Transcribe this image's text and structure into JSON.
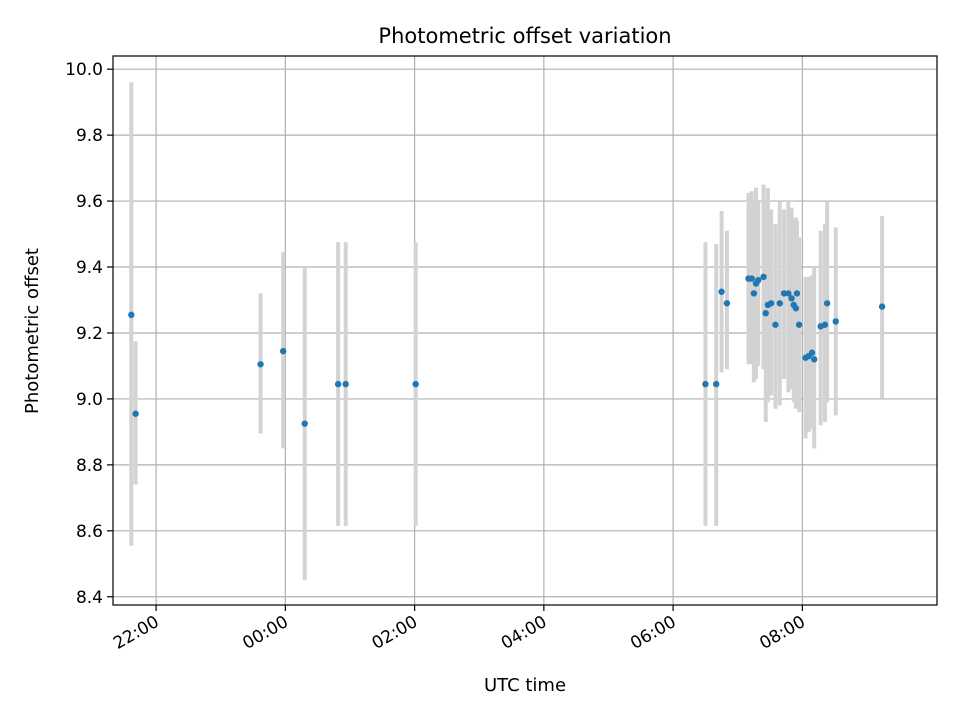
{
  "chart_data": {
    "type": "scatter",
    "title": "Photometric offset variation",
    "xlabel": "UTC time",
    "ylabel": "Photometric offset",
    "x_unit": "UTC time (day 1 evening → day 2 morning)",
    "xlim": [
      "21:20",
      "10:05"
    ],
    "ylim": [
      8.375,
      10.04
    ],
    "x_ticks": [
      "22:00",
      "00:00",
      "02:00",
      "04:00",
      "06:00",
      "08:00"
    ],
    "y_ticks": [
      "8.4",
      "8.6",
      "8.8",
      "9.0",
      "9.2",
      "9.4",
      "9.6",
      "9.8",
      "10.0"
    ],
    "grid": true,
    "colors": {
      "points": "#1f77b4",
      "errorbars": "#d3d3d3"
    },
    "points": [
      {
        "t": "21:37",
        "y": 9.255,
        "lo": 8.555,
        "hi": 9.96
      },
      {
        "t": "21:41",
        "y": 8.955,
        "lo": 8.74,
        "hi": 9.175
      },
      {
        "t": "23:37",
        "y": 9.105,
        "lo": 8.895,
        "hi": 9.32
      },
      {
        "t": "23:58",
        "y": 9.145,
        "lo": 8.85,
        "hi": 9.445
      },
      {
        "t": "00:18",
        "y": 8.925,
        "lo": 8.45,
        "hi": 9.4
      },
      {
        "t": "00:49",
        "y": 9.045,
        "lo": 8.615,
        "hi": 9.475
      },
      {
        "t": "00:56",
        "y": 9.045,
        "lo": 8.615,
        "hi": 9.475
      },
      {
        "t": "02:01",
        "y": 9.045,
        "lo": 8.615,
        "hi": 9.475
      },
      {
        "t": "06:30",
        "y": 9.045,
        "lo": 8.615,
        "hi": 9.475
      },
      {
        "t": "06:40",
        "y": 9.045,
        "lo": 8.615,
        "hi": 9.47
      },
      {
        "t": "06:45",
        "y": 9.325,
        "lo": 9.08,
        "hi": 9.57
      },
      {
        "t": "06:50",
        "y": 9.29,
        "lo": 9.09,
        "hi": 9.51
      },
      {
        "t": "07:10",
        "y": 9.365,
        "lo": 9.105,
        "hi": 9.625
      },
      {
        "t": "07:13",
        "y": 9.365,
        "lo": 9.105,
        "hi": 9.63
      },
      {
        "t": "07:15",
        "y": 9.32,
        "lo": 9.05,
        "hi": 9.6
      },
      {
        "t": "07:17",
        "y": 9.35,
        "lo": 9.06,
        "hi": 9.64
      },
      {
        "t": "07:19",
        "y": 9.36,
        "lo": 9.1,
        "hi": 9.6
      },
      {
        "t": "07:24",
        "y": 9.37,
        "lo": 9.09,
        "hi": 9.65
      },
      {
        "t": "07:26",
        "y": 9.26,
        "lo": 8.93,
        "hi": 9.6
      },
      {
        "t": "07:28",
        "y": 9.285,
        "lo": 8.99,
        "hi": 9.64
      },
      {
        "t": "07:31",
        "y": 9.29,
        "lo": 9.01,
        "hi": 9.575
      },
      {
        "t": "07:35",
        "y": 9.225,
        "lo": 8.97,
        "hi": 9.53
      },
      {
        "t": "07:39",
        "y": 9.29,
        "lo": 8.98,
        "hi": 9.6
      },
      {
        "t": "07:43",
        "y": 9.32,
        "lo": 9.06,
        "hi": 9.575
      },
      {
        "t": "07:47",
        "y": 9.32,
        "lo": 9.02,
        "hi": 9.6
      },
      {
        "t": "07:50",
        "y": 9.305,
        "lo": 9.03,
        "hi": 9.58
      },
      {
        "t": "07:52",
        "y": 9.285,
        "lo": 8.99,
        "hi": 9.55
      },
      {
        "t": "07:54",
        "y": 9.275,
        "lo": 8.97,
        "hi": 9.55
      },
      {
        "t": "07:55",
        "y": 9.32,
        "lo": 9.06,
        "hi": 9.54
      },
      {
        "t": "07:57",
        "y": 9.225,
        "lo": 8.96,
        "hi": 9.49
      },
      {
        "t": "08:03",
        "y": 9.125,
        "lo": 8.88,
        "hi": 9.37
      },
      {
        "t": "08:06",
        "y": 9.13,
        "lo": 8.9,
        "hi": 9.37
      },
      {
        "t": "08:09",
        "y": 9.14,
        "lo": 8.91,
        "hi": 9.375
      },
      {
        "t": "08:11",
        "y": 9.12,
        "lo": 8.85,
        "hi": 9.4
      },
      {
        "t": "08:17",
        "y": 9.22,
        "lo": 8.92,
        "hi": 9.51
      },
      {
        "t": "08:21",
        "y": 9.225,
        "lo": 8.93,
        "hi": 9.53
      },
      {
        "t": "08:23",
        "y": 9.29,
        "lo": 8.99,
        "hi": 9.6
      },
      {
        "t": "08:31",
        "y": 9.235,
        "lo": 8.95,
        "hi": 9.52
      },
      {
        "t": "09:14",
        "y": 9.28,
        "lo": 9.0,
        "hi": 9.555
      }
    ]
  }
}
